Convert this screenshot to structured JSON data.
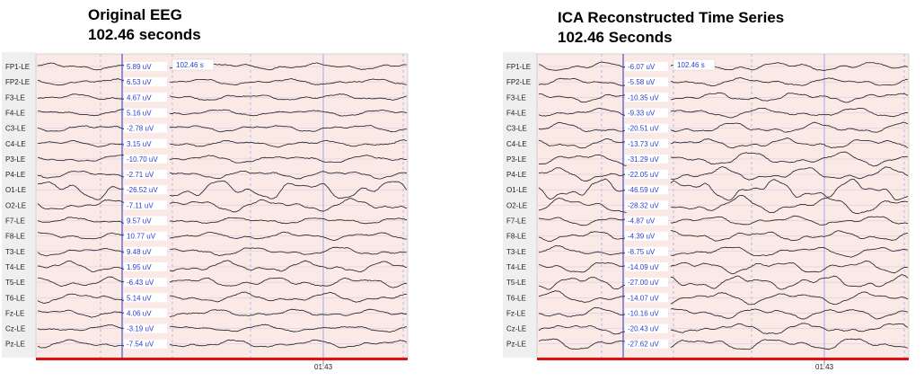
{
  "left_title": {
    "line1": "Original EEG",
    "line2": "102.46 seconds"
  },
  "right_title": {
    "line1": "ICA Reconstructed Time Series",
    "line2": "102.46 Seconds"
  },
  "colors": {
    "background": "#fbe9e6",
    "trace": "#1a1a1a",
    "cursor": "#2233cc",
    "value_text": "#2a3fd0",
    "baseline": "#dd1111",
    "grid": "#9aa0ee"
  },
  "chart_data": [
    {
      "type": "line",
      "title": "Original EEG",
      "subtitle": "102.46 seconds",
      "channels": [
        "FP1-LE",
        "FP2-LE",
        "F3-LE",
        "F4-LE",
        "C3-LE",
        "C4-LE",
        "P3-LE",
        "P4-LE",
        "O1-LE",
        "O2-LE",
        "F7-LE",
        "F8-LE",
        "T3-LE",
        "T4-LE",
        "T5-LE",
        "T6-LE",
        "Fz-LE",
        "Cz-LE",
        "Pz-LE"
      ],
      "cursor_values": [
        "5.89 uV",
        "6.53 uV",
        "4.67 uV",
        "5.16 uV",
        "-2.78 uV",
        "3.15 uV",
        "-10.70 uV",
        "-2.71 uV",
        "-26.52 uV",
        "-7.11 uV",
        "9.57 uV",
        "10.77 uV",
        "9.48 uV",
        "1.95 uV",
        "-6.43 uV",
        "5.14 uV",
        "4.06 uV",
        "-3.19 uV",
        "-7.54 uV"
      ],
      "cursor_time": "102.46 s",
      "x_tick": "01:43",
      "amplitude_scale": [
        1,
        1,
        1,
        1,
        1.1,
        1,
        1.2,
        1.3,
        3.2,
        2,
        1,
        1.2,
        1.4,
        1.8,
        1.6,
        1.6,
        1.2,
        1.1,
        1.3
      ]
    },
    {
      "type": "line",
      "title": "ICA Reconstructed Time Series",
      "subtitle": "102.46 Seconds",
      "channels": [
        "FP1-LE",
        "FP2-LE",
        "F3-LE",
        "F4-LE",
        "C3-LE",
        "C4-LE",
        "P3-LE",
        "P4-LE",
        "O1-LE",
        "O2-LE",
        "F7-LE",
        "F8-LE",
        "T3-LE",
        "T4-LE",
        "T5-LE",
        "T6-LE",
        "Fz-LE",
        "Cz-LE",
        "Pz-LE"
      ],
      "cursor_values": [
        "-6.07 uV",
        "-5.58 uV",
        "-10.35 uV",
        "-9.33 uV",
        "-20.51 uV",
        "-13.73 uV",
        "-31.29 uV",
        "-22.05 uV",
        "-46.59 uV",
        "-28.32 uV",
        "-4.87 uV",
        "-4.39 uV",
        "-8.75 uV",
        "-14.09 uV",
        "-27.00 uV",
        "-14.07 uV",
        "-10.16 uV",
        "-20.43 uV",
        "-27.62 uV"
      ],
      "cursor_time": "102.46 s",
      "x_tick": "01:43",
      "amplitude_scale": [
        1.4,
        1.3,
        1.5,
        1.5,
        1.7,
        1.6,
        2.2,
        2.2,
        3.4,
        2.8,
        1.5,
        1.6,
        1.7,
        2,
        2.2,
        2,
        1.7,
        1.8,
        2
      ]
    }
  ]
}
